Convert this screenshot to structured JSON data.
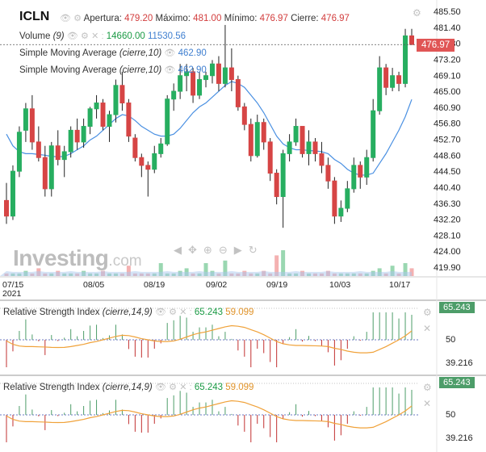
{
  "header": {
    "ticker": "ICLN",
    "open_label": "Apertura:",
    "open_value": "479.20",
    "high_label": "Máximo:",
    "high_value": "481.00",
    "low_label": "Mínimo:",
    "low_value": "476.97",
    "close_label": "Cierre:",
    "close_value": "476.97"
  },
  "legend": {
    "volume_label": "Volume",
    "volume_param": "(9)",
    "volume_value1": "14660.00",
    "volume_value2": "11530.56",
    "sma1_label": "Simple Moving Average",
    "sma1_param": "(cierre,10)",
    "sma1_value": "462.90",
    "sma2_label": "Simple Moving Average",
    "sma2_param": "(cierre,10)",
    "sma2_value": "462.90"
  },
  "price_tag": "476.97",
  "watermark": {
    "brand": "Investing",
    "suffix": ".com"
  },
  "rsi": [
    {
      "label": "Relative Strength Index",
      "param": "(cierre,14,9)",
      "value1": "65.243",
      "value2": "59.099",
      "tag": "65.243",
      "mid": "50",
      "low": "39.216"
    },
    {
      "label": "Relative Strength Index",
      "param": "(cierre,14,9)",
      "value1": "65.243",
      "value2": "59.099",
      "tag": "65.243",
      "mid": "50",
      "low": "39.216"
    }
  ],
  "colors": {
    "up": "#27ae60",
    "down": "#d64545",
    "sma": "#4a90e2",
    "rsi_signal": "#f0a23a",
    "tag_up": "#4d9d69",
    "tag_price": "#e05555"
  },
  "icons": [
    "eye-icon",
    "settings-icon",
    "close-icon",
    "arrow-left-icon",
    "pan-icon",
    "zoom-in-icon",
    "zoom-out-icon",
    "arrow-right-icon",
    "reset-icon"
  ],
  "chart_data": [
    {
      "type": "candlestick",
      "title": "ICLN",
      "y_ticks": [
        485.5,
        481.4,
        477.3,
        473.2,
        469.1,
        465.0,
        460.9,
        456.8,
        452.7,
        448.6,
        444.5,
        440.4,
        436.3,
        432.2,
        428.1,
        424.0,
        419.9
      ],
      "y_tick_labels": [
        "485.50",
        "481.40",
        "477.30",
        "473.20",
        "469.10",
        "465.00",
        "460.90",
        "456.80",
        "452.70",
        "448.60",
        "444.50",
        "440.40",
        "436.30",
        "432.20",
        "428.10",
        "424.00",
        "419.90"
      ],
      "x_tick_labels": [
        "07/15\n2021",
        "08/05",
        "08/19",
        "09/02",
        "09/19",
        "10/03",
        "10/17"
      ],
      "candles": [
        [
          437.0,
          441.5,
          431.0,
          433.0
        ],
        [
          433.0,
          446.0,
          432.0,
          444.5
        ],
        [
          444.5,
          456.0,
          443.0,
          454.5
        ],
        [
          455.0,
          462.0,
          452.0,
          460.5
        ],
        [
          460.5,
          464.0,
          450.0,
          452.0
        ],
        [
          452.0,
          456.0,
          447.0,
          448.0
        ],
        [
          448.0,
          451.0,
          438.0,
          440.0
        ],
        [
          440.0,
          452.0,
          438.0,
          451.0
        ],
        [
          451.0,
          455.0,
          446.0,
          447.5
        ],
        [
          447.5,
          451.0,
          443.0,
          449.5
        ],
        [
          449.5,
          456.0,
          448.0,
          455.0
        ],
        [
          455.0,
          458.0,
          450.0,
          452.0
        ],
        [
          452.0,
          458.0,
          450.5,
          456.0
        ],
        [
          456.0,
          461.0,
          454.0,
          460.5
        ],
        [
          460.5,
          464.0,
          458.0,
          462.0
        ],
        [
          462.0,
          463.0,
          455.0,
          456.0
        ],
        [
          456.0,
          460.0,
          452.0,
          459.0
        ],
        [
          459.0,
          468.0,
          457.0,
          466.5
        ],
        [
          466.5,
          470.0,
          460.0,
          462.0
        ],
        [
          462.0,
          463.0,
          452.0,
          453.5
        ],
        [
          453.0,
          454.0,
          447.0,
          448.0
        ],
        [
          448.0,
          449.0,
          443.0,
          446.0
        ],
        [
          446.0,
          447.0,
          438.0,
          445.0
        ],
        [
          445.0,
          451.0,
          444.0,
          449.0
        ],
        [
          449.0,
          453.0,
          448.0,
          451.5
        ],
        [
          451.5,
          464.0,
          451.0,
          463.0
        ],
        [
          463.0,
          467.0,
          460.0,
          465.0
        ],
        [
          465.0,
          472.0,
          463.0,
          469.0
        ],
        [
          469.0,
          472.0,
          465.0,
          470.0
        ],
        [
          470.0,
          471.0,
          462.0,
          464.0
        ],
        [
          464.0,
          470.0,
          463.0,
          468.0
        ],
        [
          468.0,
          470.0,
          466.0,
          469.0
        ],
        [
          469.0,
          473.0,
          467.0,
          472.0
        ],
        [
          472.0,
          474.0,
          465.0,
          467.0
        ],
        [
          467.0,
          482.0,
          466.0,
          471.0
        ],
        [
          471.0,
          476.0,
          465.0,
          468.0
        ],
        [
          468.0,
          469.0,
          460.0,
          461.0
        ],
        [
          461.0,
          462.0,
          455.0,
          456.5
        ],
        [
          456.5,
          458.0,
          447.0,
          448.5
        ],
        [
          448.5,
          459.0,
          448.0,
          457.0
        ],
        [
          457.0,
          458.0,
          450.0,
          452.0
        ],
        [
          452.0,
          453.0,
          442.0,
          444.0
        ],
        [
          444.0,
          445.0,
          436.0,
          438.0
        ],
        [
          438.0,
          450.0,
          430.0,
          449.0
        ],
        [
          449.0,
          454.0,
          447.0,
          452.0
        ],
        [
          452.0,
          458.0,
          451.0,
          456.0
        ],
        [
          456.0,
          456.0,
          448.0,
          449.0
        ],
        [
          449.0,
          455.0,
          446.0,
          452.0
        ],
        [
          452.0,
          453.0,
          447.0,
          449.0
        ],
        [
          449.0,
          452.0,
          444.0,
          446.0
        ],
        [
          446.0,
          448.0,
          440.0,
          442.0
        ],
        [
          442.0,
          443.0,
          431.0,
          433.0
        ],
        [
          433.0,
          437.0,
          431.5,
          435.0
        ],
        [
          435.0,
          442.0,
          434.0,
          440.0
        ],
        [
          440.0,
          448.0,
          439.0,
          446.0
        ],
        [
          446.0,
          447.0,
          440.0,
          443.0
        ],
        [
          443.0,
          450.0,
          441.0,
          448.0
        ],
        [
          448.0,
          463.0,
          447.0,
          460.0
        ],
        [
          460.0,
          474.0,
          459.0,
          471.0
        ],
        [
          471.0,
          472.0,
          464.0,
          466.0
        ],
        [
          466.0,
          471.0,
          465.0,
          469.0
        ],
        [
          469.0,
          470.0,
          465.0,
          467.0
        ],
        [
          467.0,
          481.0,
          466.0,
          479.2
        ],
        [
          479.2,
          481.0,
          476.97,
          476.97
        ]
      ],
      "sma": [
        454.0,
        451.0,
        449.5,
        449.0,
        449.0,
        448.8,
        448.6,
        448.3,
        448.2,
        448.3,
        449.0,
        450.0,
        451.0,
        452.5,
        453.5,
        455.0,
        456.5,
        458.0,
        459.0,
        458.7,
        457.5,
        456.0,
        455.0,
        454.0,
        453.5,
        453.5,
        454.0,
        455.5,
        457.5,
        459.5,
        461.0,
        462.0,
        463.5,
        465.0,
        466.5,
        467.5,
        467.0,
        466.0,
        464.0,
        462.0,
        459.5,
        456.5,
        453.5,
        451.5,
        450.5,
        450.0,
        450.0,
        449.8,
        449.7,
        449.5,
        449.0,
        447.5,
        446.5,
        445.0,
        444.0,
        443.5,
        443.5,
        444.0,
        446.5,
        449.0,
        452.0,
        455.0,
        458.5,
        462.9
      ],
      "volume": [
        1,
        1,
        1,
        2,
        1,
        3,
        1,
        1,
        2,
        1,
        1,
        1,
        2,
        1,
        1,
        2,
        1,
        1,
        1,
        4,
        1,
        1,
        1,
        1,
        5,
        1,
        1,
        2,
        3,
        1,
        1,
        5,
        2,
        1,
        6,
        1,
        1,
        2,
        1,
        1,
        2,
        1,
        8,
        10,
        1,
        1,
        2,
        1,
        1,
        1,
        2,
        1,
        1,
        1,
        1,
        1,
        1,
        2,
        3,
        1,
        4,
        1,
        5,
        3
      ]
    },
    {
      "type": "histogram+line",
      "title": "Relative Strength Index",
      "y_tick_labels": [
        "50",
        "39.216"
      ],
      "rsi_tag": 65.243,
      "signal_last": 59.099
    }
  ]
}
